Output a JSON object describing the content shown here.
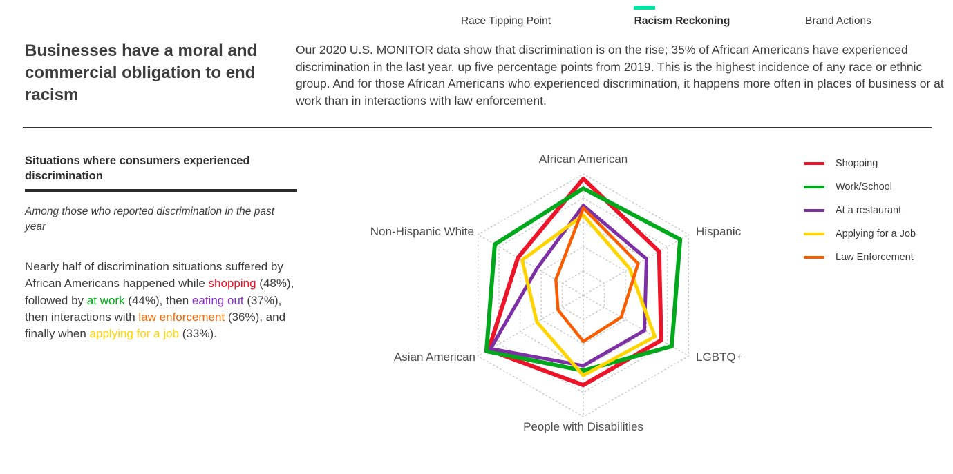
{
  "nav": {
    "tabs": [
      {
        "label": "Race Tipping Point",
        "active": false
      },
      {
        "label": "Racism Reckoning",
        "active": true
      },
      {
        "label": "Brand Actions",
        "active": false
      }
    ],
    "indicator_color": "#00e3a5"
  },
  "headline": "Businesses have a moral and commercial obligation to end racism",
  "intro": "Our 2020 U.S. MONITOR data show that discrimination is on the rise; 35% of African Americans have experienced discrimination in the last year, up five percentage points from 2019. This is the highest incidence of any race or ethnic group. And for those African Americans who experienced discrimination, it happens more often in places of business or at work than in interactions with law enforcement.",
  "panel": {
    "title": "Situations where consumers experienced discrimination",
    "note": "Among those who reported discrimination in the past year",
    "body_segments": [
      {
        "text": "Nearly half of discrimination situations suffered by African Americans happened while "
      },
      {
        "text": "shopping",
        "color": "#ed1328"
      },
      {
        "text": " (48%), followed by "
      },
      {
        "text": "at work",
        "color": "#00b012"
      },
      {
        "text": " (44%), then "
      },
      {
        "text": "eating out",
        "color": "#8b2fc7"
      },
      {
        "text": " (37%), then interactions with "
      },
      {
        "text": "law enforcement",
        "color": "#fb6500"
      },
      {
        "text": " (36%), and finally when "
      },
      {
        "text": "applying for a job",
        "color": "#ffd400"
      },
      {
        "text": " (33%)."
      }
    ]
  },
  "chart_data": {
    "type": "radar",
    "axes": [
      "African American",
      "Hispanic",
      "LGBTQ+",
      "People with Disabilities",
      "Asian American",
      "Non-Hispanic White"
    ],
    "max": 50,
    "grid_levels": [
      10,
      20,
      30,
      40,
      50
    ],
    "grid": "dotted hexagonal rings with radial spokes, no tick labels",
    "legend_position": "right",
    "series": [
      {
        "name": "Shopping",
        "color": "#ed1328",
        "width": 6,
        "values": [
          48,
          36,
          37,
          37,
          45,
          31
        ]
      },
      {
        "name": "Work/School",
        "color": "#00a91c",
        "width": 6,
        "values": [
          44,
          46,
          42,
          31,
          46,
          42
        ]
      },
      {
        "name": "At a restaurant",
        "color": "#7d2fa6",
        "width": 5,
        "values": [
          37,
          30,
          29,
          29,
          44,
          22
        ]
      },
      {
        "name": "Applying for a Job",
        "color": "#ffd400",
        "width": 5,
        "values": [
          33,
          22,
          34,
          33,
          22,
          29
        ]
      },
      {
        "name": "Law Enforcement",
        "color": "#f95d00",
        "width": 4.5,
        "values": [
          36,
          26,
          18,
          19,
          12,
          13
        ]
      }
    ]
  }
}
